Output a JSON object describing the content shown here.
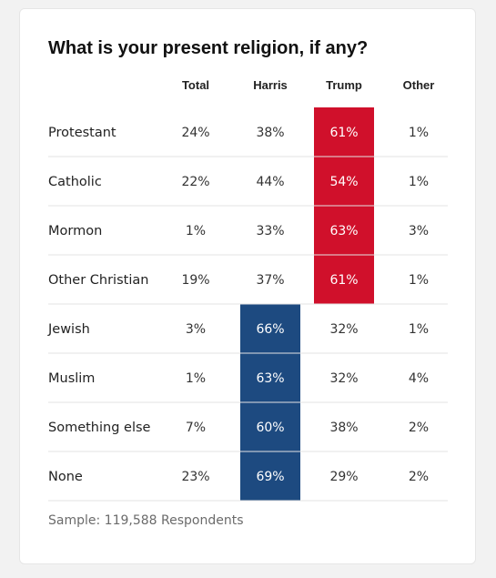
{
  "chart_data": {
    "type": "table",
    "title": "What is your present religion, if any?",
    "columns": [
      "Total",
      "Harris",
      "Trump",
      "Other"
    ],
    "rows": [
      {
        "label": "Protestant",
        "values": [
          "24%",
          "38%",
          "61%",
          "1%"
        ],
        "highlight": "Trump"
      },
      {
        "label": "Catholic",
        "values": [
          "22%",
          "44%",
          "54%",
          "1%"
        ],
        "highlight": "Trump"
      },
      {
        "label": "Mormon",
        "values": [
          "1%",
          "33%",
          "63%",
          "3%"
        ],
        "highlight": "Trump"
      },
      {
        "label": "Other Christian",
        "values": [
          "19%",
          "37%",
          "61%",
          "1%"
        ],
        "highlight": "Trump"
      },
      {
        "label": "Jewish",
        "values": [
          "3%",
          "66%",
          "32%",
          "1%"
        ],
        "highlight": "Harris"
      },
      {
        "label": "Muslim",
        "values": [
          "1%",
          "63%",
          "32%",
          "4%"
        ],
        "highlight": "Harris"
      },
      {
        "label": "Something else",
        "values": [
          "7%",
          "60%",
          "38%",
          "2%"
        ],
        "highlight": "Harris"
      },
      {
        "label": "None",
        "values": [
          "23%",
          "69%",
          "29%",
          "2%"
        ],
        "highlight": "Harris"
      }
    ],
    "highlight_colors": {
      "Harris": "#1d4a80",
      "Trump": "#d0102b"
    },
    "footnote": "Sample: 119,588 Respondents"
  }
}
